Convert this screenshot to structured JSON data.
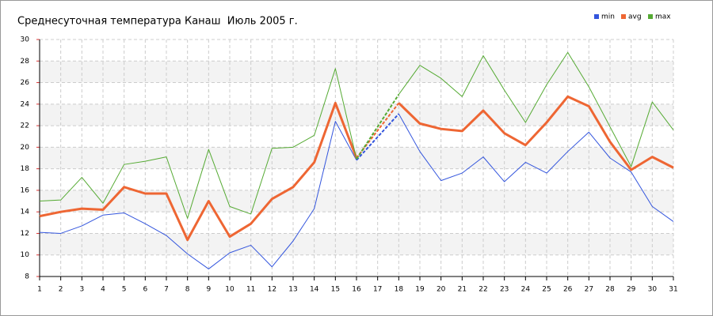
{
  "chart_data": {
    "type": "line",
    "title": "Среднесуточная температура Канаш  Июль 2005 г.",
    "x": [
      1,
      2,
      3,
      4,
      5,
      6,
      7,
      8,
      9,
      10,
      11,
      12,
      13,
      14,
      15,
      16,
      17,
      18,
      19,
      20,
      21,
      22,
      23,
      24,
      25,
      26,
      27,
      28,
      29,
      30,
      31
    ],
    "series": [
      {
        "name": "min",
        "color": "#3355dd",
        "values": [
          12.1,
          12.0,
          12.7,
          13.7,
          13.9,
          12.9,
          11.8,
          10.1,
          8.7,
          10.2,
          10.9,
          8.9,
          11.3,
          14.3,
          22.4,
          18.8,
          null,
          23.1,
          19.6,
          16.9,
          17.6,
          19.1,
          16.8,
          18.6,
          17.6,
          19.6,
          21.4,
          19.0,
          17.7,
          14.5,
          13.1
        ]
      },
      {
        "name": "avg",
        "color": "#ee6633",
        "values": [
          13.6,
          14.0,
          14.3,
          14.2,
          16.3,
          15.7,
          15.7,
          11.4,
          15.0,
          11.7,
          12.9,
          15.2,
          16.3,
          18.6,
          24.1,
          19.0,
          null,
          24.1,
          22.2,
          21.7,
          21.5,
          23.4,
          21.3,
          20.2,
          22.3,
          24.7,
          23.8,
          20.5,
          17.9,
          19.1,
          18.1
        ]
      },
      {
        "name": "max",
        "color": "#55aa33",
        "values": [
          15.0,
          15.1,
          17.2,
          14.8,
          18.4,
          18.7,
          19.1,
          13.4,
          19.8,
          14.5,
          13.8,
          19.9,
          20.0,
          21.1,
          27.3,
          18.9,
          null,
          24.9,
          27.6,
          26.4,
          24.7,
          28.5,
          25.3,
          22.3,
          25.8,
          28.8,
          25.6,
          21.9,
          18.2,
          24.2,
          21.6
        ]
      }
    ],
    "xlim": [
      1,
      31
    ],
    "xticks": [
      1,
      2,
      3,
      4,
      5,
      6,
      7,
      8,
      9,
      10,
      11,
      12,
      13,
      14,
      15,
      16,
      17,
      18,
      19,
      20,
      21,
      22,
      23,
      24,
      25,
      26,
      27,
      28,
      29,
      30,
      31
    ],
    "ylim": [
      8,
      30
    ],
    "yticks": [
      8,
      10,
      12,
      14,
      16,
      18,
      20,
      22,
      24,
      26,
      28,
      30
    ],
    "grid": true,
    "legend": "top-right"
  }
}
